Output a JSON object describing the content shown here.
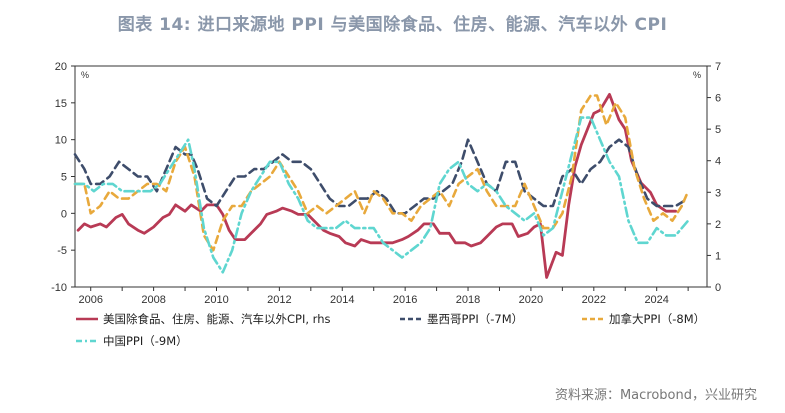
{
  "title": "图表 14: 进口来源地 PPI 与美国除食品、住房、能源、汽车以外 CPI",
  "source": "资料来源：Macrobond，兴业研究",
  "chart_data": {
    "type": "line",
    "left_axis": {
      "min": -10,
      "max": 20,
      "ticks": [
        -10,
        -5,
        0,
        5,
        10,
        15,
        20
      ],
      "unit": "%"
    },
    "right_axis": {
      "min": 0,
      "max": 7,
      "ticks": [
        0,
        1,
        2,
        3,
        4,
        5,
        6,
        7
      ],
      "unit": "%"
    },
    "x_range": [
      2005.5,
      2025.6
    ],
    "x_ticks": [
      "2006",
      "2008",
      "2010",
      "2012",
      "2014",
      "2016",
      "2018",
      "2020",
      "2022",
      "2024"
    ],
    "series": [
      {
        "name": "美国除食品、住房、能源、汽车以外CPI, rhs",
        "axis": "right",
        "color": "#b83a55",
        "dash": "",
        "x": [
          2005.6,
          2005.8,
          2006.0,
          2006.3,
          2006.5,
          2006.8,
          2007.0,
          2007.2,
          2007.5,
          2007.7,
          2008.0,
          2008.3,
          2008.5,
          2008.7,
          2009.0,
          2009.2,
          2009.5,
          2009.7,
          2010.0,
          2010.2,
          2010.4,
          2010.6,
          2010.9,
          2011.1,
          2011.4,
          2011.6,
          2011.9,
          2012.1,
          2012.4,
          2012.6,
          2012.9,
          2013.1,
          2013.4,
          2013.6,
          2013.9,
          2014.1,
          2014.4,
          2014.6,
          2014.9,
          2015.1,
          2015.4,
          2015.6,
          2015.9,
          2016.1,
          2016.4,
          2016.6,
          2016.9,
          2017.1,
          2017.4,
          2017.6,
          2017.9,
          2018.1,
          2018.4,
          2018.6,
          2018.9,
          2019.1,
          2019.4,
          2019.6,
          2019.9,
          2020.1,
          2020.3,
          2020.5,
          2020.8,
          2021.0,
          2021.2,
          2021.4,
          2021.6,
          2021.8,
          2022.0,
          2022.2,
          2022.5,
          2022.8,
          2023.0,
          2023.2,
          2023.5,
          2023.8,
          2024.0,
          2024.3,
          2024.6
        ],
        "y": [
          1.8,
          2.0,
          1.9,
          2.0,
          1.9,
          2.2,
          2.3,
          2.0,
          1.8,
          1.7,
          1.9,
          2.2,
          2.3,
          2.6,
          2.4,
          2.6,
          2.4,
          2.6,
          2.6,
          2.3,
          1.8,
          1.5,
          1.5,
          1.7,
          2.0,
          2.3,
          2.4,
          2.5,
          2.4,
          2.3,
          2.3,
          2.1,
          1.8,
          1.7,
          1.6,
          1.4,
          1.3,
          1.5,
          1.4,
          1.4,
          1.4,
          1.4,
          1.5,
          1.6,
          1.8,
          2.0,
          2.0,
          1.7,
          1.7,
          1.4,
          1.4,
          1.3,
          1.4,
          1.6,
          1.9,
          2.0,
          2.0,
          1.6,
          1.7,
          1.9,
          2.0,
          0.3,
          1.1,
          1.0,
          2.6,
          3.8,
          4.5,
          5.0,
          5.5,
          5.6,
          6.1,
          5.3,
          5.0,
          4.0,
          3.3,
          3.0,
          2.6,
          2.4,
          2.4
        ]
      },
      {
        "name": "墨西哥PPI（-7M）",
        "axis": "left",
        "color": "#3e4d6b",
        "dash": "8,5",
        "x": [
          2005.5,
          2005.8,
          2006.0,
          2006.3,
          2006.6,
          2006.9,
          2007.2,
          2007.5,
          2007.8,
          2008.1,
          2008.4,
          2008.7,
          2009.0,
          2009.2,
          2009.4,
          2009.7,
          2010.0,
          2010.3,
          2010.6,
          2010.9,
          2011.2,
          2011.5,
          2011.8,
          2012.1,
          2012.4,
          2012.7,
          2013.0,
          2013.3,
          2013.6,
          2013.9,
          2014.2,
          2014.5,
          2014.8,
          2015.1,
          2015.4,
          2015.7,
          2016.0,
          2016.3,
          2016.6,
          2016.9,
          2017.2,
          2017.5,
          2017.8,
          2018.0,
          2018.3,
          2018.6,
          2018.9,
          2019.2,
          2019.5,
          2019.8,
          2020.1,
          2020.4,
          2020.7,
          2021.0,
          2021.3,
          2021.6,
          2021.9,
          2022.2,
          2022.5,
          2022.8,
          2023.1,
          2023.4,
          2023.7,
          2024.0,
          2024.3,
          2024.6,
          2025.0
        ],
        "y": [
          8,
          6,
          4,
          4,
          5,
          7,
          6,
          5,
          5,
          3,
          6,
          9,
          8,
          8,
          6,
          2,
          1,
          3,
          5,
          5,
          6,
          6,
          7,
          8,
          7,
          7,
          6,
          4,
          2,
          1,
          1,
          2,
          2,
          3,
          2,
          0,
          0,
          1,
          2,
          2,
          3,
          4,
          7,
          10,
          7,
          4,
          3,
          7,
          7,
          3,
          2,
          1,
          1,
          5,
          6,
          4,
          6,
          7,
          9,
          10,
          9,
          5,
          2,
          1,
          1,
          1,
          2
        ]
      },
      {
        "name": "加拿大PPI（-8M）",
        "axis": "left",
        "color": "#e8a93c",
        "dash": "7,5",
        "x": [
          2005.5,
          2005.8,
          2006.0,
          2006.3,
          2006.6,
          2006.9,
          2007.2,
          2007.5,
          2007.8,
          2008.1,
          2008.4,
          2008.7,
          2009.0,
          2009.3,
          2009.6,
          2009.9,
          2010.2,
          2010.5,
          2010.8,
          2011.1,
          2011.4,
          2011.7,
          2012.0,
          2012.3,
          2012.6,
          2012.9,
          2013.2,
          2013.5,
          2013.8,
          2014.1,
          2014.4,
          2014.7,
          2015.0,
          2015.3,
          2015.6,
          2015.9,
          2016.2,
          2016.5,
          2016.8,
          2017.1,
          2017.4,
          2017.7,
          2018.0,
          2018.3,
          2018.6,
          2018.9,
          2019.2,
          2019.5,
          2019.8,
          2020.1,
          2020.4,
          2020.7,
          2021.0,
          2021.3,
          2021.6,
          2021.9,
          2022.1,
          2022.4,
          2022.7,
          2023.0,
          2023.3,
          2023.6,
          2023.9,
          2024.2,
          2024.5,
          2024.8,
          2025.0
        ],
        "y": [
          4,
          4,
          0,
          1,
          3,
          2,
          2,
          3,
          4,
          4,
          3,
          7,
          9,
          5,
          -3,
          -5,
          -1,
          1,
          1,
          3,
          4,
          5,
          7,
          5,
          3,
          0,
          1,
          0,
          1,
          2,
          3,
          0,
          3,
          2,
          0,
          0,
          -1,
          1,
          2,
          3,
          1,
          4,
          5,
          6,
          3,
          1,
          1,
          1,
          4,
          1,
          -2,
          -2,
          0,
          5,
          14,
          16,
          16,
          12,
          15,
          13,
          6,
          2,
          -1,
          0,
          -1,
          1,
          3
        ]
      },
      {
        "name": "中国PPI（-9M）",
        "axis": "left",
        "color": "#5fd6d0",
        "dash": "9,4,2,4",
        "x": [
          2005.5,
          2005.8,
          2006.1,
          2006.4,
          2006.7,
          2007.0,
          2007.3,
          2007.6,
          2007.9,
          2008.2,
          2008.5,
          2008.8,
          2009.1,
          2009.3,
          2009.6,
          2009.9,
          2010.2,
          2010.5,
          2010.8,
          2011.1,
          2011.4,
          2011.7,
          2012.0,
          2012.3,
          2012.6,
          2012.9,
          2013.2,
          2013.5,
          2013.8,
          2014.1,
          2014.4,
          2014.7,
          2015.0,
          2015.3,
          2015.6,
          2015.9,
          2016.2,
          2016.5,
          2016.8,
          2017.1,
          2017.4,
          2017.7,
          2018.0,
          2018.3,
          2018.6,
          2018.9,
          2019.2,
          2019.5,
          2019.8,
          2020.1,
          2020.4,
          2020.7,
          2021.0,
          2021.3,
          2021.6,
          2021.9,
          2022.2,
          2022.5,
          2022.8,
          2023.1,
          2023.4,
          2023.7,
          2024.0,
          2024.3,
          2024.6,
          2025.0
        ],
        "y": [
          4,
          4,
          3,
          4,
          4,
          3,
          3,
          3,
          3,
          4,
          6,
          8,
          10,
          6,
          -2,
          -6,
          -8,
          -5,
          0,
          3,
          5,
          7,
          7,
          4,
          2,
          -1,
          -2,
          -2,
          -2,
          -1,
          -2,
          -2,
          -2,
          -4,
          -5,
          -6,
          -5,
          -4,
          -2,
          4,
          6,
          7,
          4,
          3,
          4,
          3,
          1,
          0,
          -1,
          0,
          -3,
          -2,
          3,
          8,
          13,
          13,
          10,
          7,
          5,
          -1,
          -4,
          -4,
          -2,
          -3,
          -3,
          -1
        ]
      }
    ]
  }
}
